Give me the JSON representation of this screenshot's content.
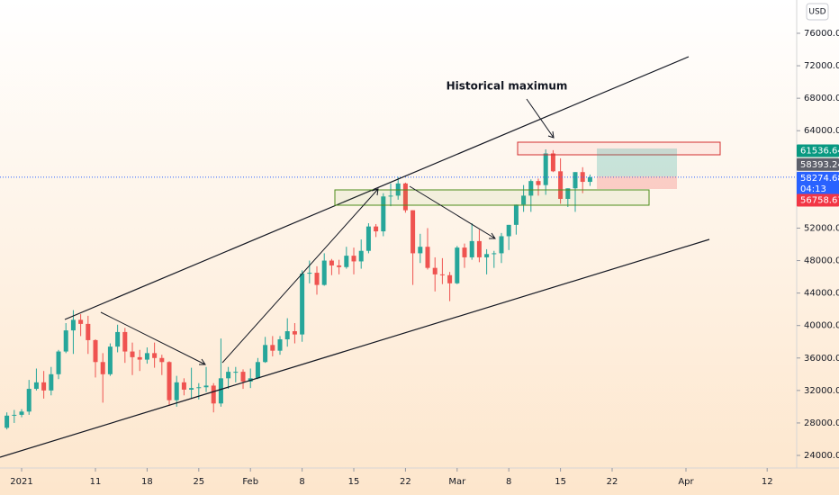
{
  "chart_data": {
    "type": "candlestick",
    "annotation": "Historical maximum",
    "currency": "USD",
    "countdown": "04:13",
    "up_color": "#26a69a",
    "down_color": "#ef5350",
    "xlim": [
      -2.93,
      105
    ],
    "xticks": [
      {
        "value": 0,
        "label": "2021"
      },
      {
        "value": 10,
        "label": "11"
      },
      {
        "value": 17,
        "label": "18"
      },
      {
        "value": 24,
        "label": "25"
      },
      {
        "value": 31,
        "label": "Feb"
      },
      {
        "value": 38,
        "label": "8"
      },
      {
        "value": 45,
        "label": "15"
      },
      {
        "value": 52,
        "label": "22"
      },
      {
        "value": 59,
        "label": "Mar"
      },
      {
        "value": 66,
        "label": "8"
      },
      {
        "value": 73,
        "label": "15"
      },
      {
        "value": 80,
        "label": "22"
      },
      {
        "value": 90,
        "label": "Apr"
      },
      {
        "value": 101,
        "label": "12"
      }
    ],
    "ylim": [
      22450,
      80100
    ],
    "yticks": [
      {
        "value": 24000,
        "label": "24000.00"
      },
      {
        "value": 28000,
        "label": "28000.00"
      },
      {
        "value": 32000,
        "label": "32000.00"
      },
      {
        "value": 36000,
        "label": "36000.00"
      },
      {
        "value": 40000,
        "label": "40000.00"
      },
      {
        "value": 44000,
        "label": "44000.00"
      },
      {
        "value": 48000,
        "label": "48000.00"
      },
      {
        "value": 52000,
        "label": "52000.00"
      },
      {
        "value": 56000,
        "label": "56000.00"
      },
      {
        "value": 60000,
        "label": "60000.00"
      },
      {
        "value": 64000,
        "label": "64000.00"
      },
      {
        "value": 68000,
        "label": "68000.00"
      },
      {
        "value": 72000,
        "label": "72000.00"
      },
      {
        "value": 76000,
        "label": "76000.00"
      }
    ],
    "price_tags": [
      {
        "value": 61536.64,
        "color": "#089981"
      },
      {
        "value": 58393.24,
        "color": "#5d606b"
      },
      {
        "value": 58274.68,
        "color": "#2962ff"
      },
      {
        "value": 56758.67,
        "color": "#f23645"
      }
    ],
    "x": [
      -2,
      -1,
      0,
      1,
      2,
      3,
      4,
      5,
      6,
      7,
      8,
      9,
      10,
      11,
      12,
      13,
      14,
      15,
      16,
      17,
      18,
      19,
      20,
      21,
      22,
      23,
      24,
      25,
      26,
      27,
      28,
      29,
      30,
      31,
      32,
      33,
      34,
      35,
      36,
      37,
      38,
      39,
      40,
      41,
      42,
      43,
      44,
      45,
      46,
      47,
      48,
      49,
      50,
      51,
      52,
      53,
      54,
      55,
      56,
      57,
      58,
      59,
      60,
      61,
      62,
      63,
      64,
      65,
      66,
      67,
      68,
      69,
      70,
      71,
      72,
      73,
      74,
      75,
      76,
      77
    ],
    "open": [
      27400,
      28900,
      29000,
      29400,
      32200,
      33000,
      32000,
      34000,
      36800,
      39400,
      40700,
      40200,
      38200,
      35500,
      34000,
      37400,
      39200,
      36800,
      36100,
      35800,
      36600,
      36000,
      35500,
      30800,
      33000,
      32100,
      32300,
      32400,
      32600,
      30400,
      33500,
      34300,
      34300,
      33100,
      33500,
      35500,
      37600,
      36900,
      38300,
      39300,
      38900,
      46400,
      46500,
      45000,
      48000,
      47400,
      47200,
      48600,
      47900,
      49200,
      52200,
      51600,
      55900,
      56000,
      57500,
      54200,
      48900,
      49700,
      47100,
      46300,
      46200,
      45200,
      49600,
      48400,
      50400,
      48400,
      48800,
      48900,
      51000,
      52400,
      54900,
      56000,
      57800,
      57300,
      61200,
      59000,
      55600,
      56900,
      58900,
      57700
    ],
    "high": [
      29300,
      29600,
      29700,
      33300,
      34700,
      34400,
      34900,
      37000,
      40300,
      41900,
      41400,
      41200,
      38300,
      36600,
      37800,
      40100,
      39700,
      37900,
      37000,
      37300,
      37900,
      36400,
      35600,
      33800,
      33500,
      34800,
      32900,
      34900,
      32900,
      38400,
      34900,
      34900,
      34600,
      34700,
      36000,
      38600,
      38700,
      38700,
      40900,
      40300,
      46800,
      48000,
      47300,
      48900,
      48200,
      48100,
      49700,
      49600,
      50600,
      52600,
      52500,
      56300,
      57500,
      58300,
      57600,
      54200,
      51300,
      52000,
      48400,
      48300,
      46600,
      49800,
      50100,
      52600,
      51800,
      49400,
      49200,
      51400,
      52400,
      54900,
      57300,
      58000,
      58100,
      61700,
      61600,
      60600,
      56900,
      58900,
      59500,
      58600
    ],
    "low": [
      27200,
      28000,
      28700,
      29000,
      32000,
      31000,
      31400,
      33400,
      36600,
      36500,
      38700,
      36500,
      33600,
      30500,
      33800,
      36700,
      35400,
      33900,
      34400,
      35300,
      34800,
      33900,
      30100,
      30000,
      31400,
      31000,
      30900,
      31800,
      29300,
      30000,
      32200,
      33000,
      32200,
      32300,
      33400,
      35400,
      36200,
      36400,
      37400,
      37800,
      38000,
      45200,
      43800,
      44900,
      46200,
      46300,
      47000,
      46300,
      47000,
      48900,
      50900,
      51000,
      54700,
      55500,
      53900,
      45000,
      47700,
      46900,
      44200,
      45100,
      43000,
      45100,
      47100,
      48100,
      47800,
      46300,
      47100,
      47700,
      49300,
      51200,
      54000,
      54000,
      56000,
      56100,
      58900,
      55000,
      54600,
      54000,
      56300,
      57200
    ],
    "close": [
      28900,
      29000,
      29400,
      32200,
      33000,
      32000,
      34000,
      36800,
      39400,
      40700,
      40200,
      38200,
      35500,
      34000,
      37400,
      39200,
      36800,
      36100,
      35800,
      36600,
      36000,
      35500,
      30800,
      33000,
      32100,
      32300,
      32400,
      32600,
      30400,
      33500,
      34300,
      34300,
      33100,
      33500,
      35500,
      37600,
      36900,
      38300,
      39300,
      38900,
      46400,
      46500,
      45000,
      48000,
      47400,
      47200,
      48600,
      47900,
      49200,
      52200,
      51600,
      55900,
      56000,
      57500,
      54200,
      48900,
      49700,
      47100,
      46300,
      46200,
      45200,
      49600,
      48400,
      50400,
      48400,
      48800,
      48900,
      51000,
      52400,
      54900,
      56000,
      57800,
      57300,
      61200,
      59000,
      55600,
      56900,
      58900,
      57700,
      58274.68
    ]
  }
}
